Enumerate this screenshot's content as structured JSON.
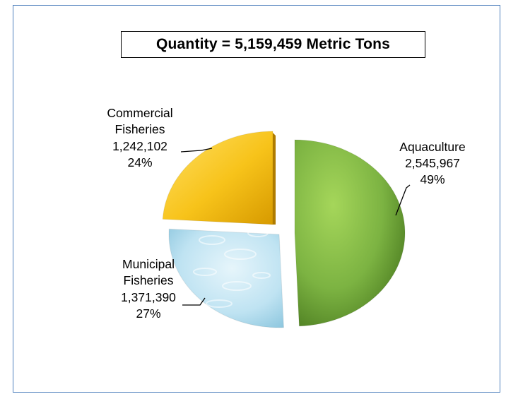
{
  "chart_data": {
    "type": "pie",
    "title": "Quantity = 5,159,459 Metric Tons",
    "slices": [
      {
        "name": "Aquaculture",
        "value": 2545967,
        "value_label": "2,545,967",
        "percent_label": "49%",
        "color": "#7cb342"
      },
      {
        "name": "Municipal Fisheries",
        "value": 1371390,
        "value_label": "1,371,390",
        "percent_label": "27%",
        "color": "#bfe3f2"
      },
      {
        "name": "Commercial Fisheries",
        "value": 1242102,
        "value_label": "1,242,102",
        "percent_label": "24%",
        "color": "#f7c31a"
      }
    ]
  },
  "labels": {
    "aquaculture": [
      "Aquaculture"
    ],
    "municipal": [
      "Municipal",
      "Fisheries"
    ],
    "commercial": [
      "Commercial",
      "Fisheries"
    ]
  }
}
